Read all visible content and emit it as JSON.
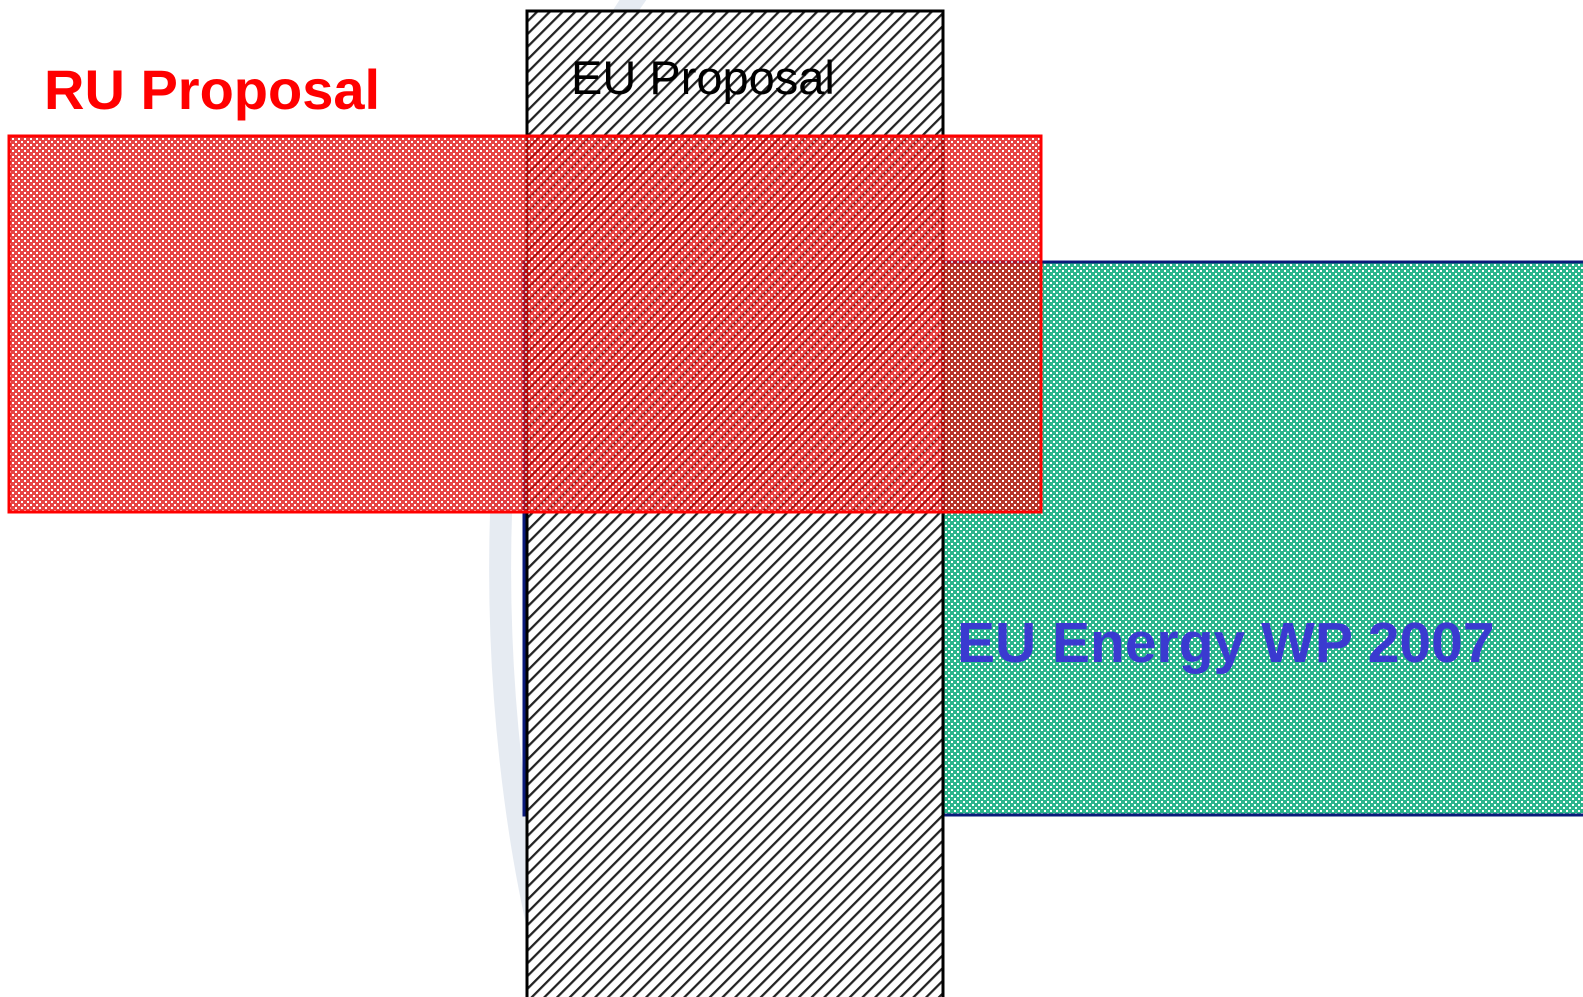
{
  "diagram": {
    "eu_energy_wp": {
      "label": "EU Energy WP 2007",
      "fill_color": "#2bb58c",
      "border_color": "#0a1a7a",
      "label_color": "#3a3ad0"
    },
    "eu_proposal": {
      "label": "EU Proposal",
      "hatch_color": "#222222",
      "border_color": "#000000",
      "label_color": "#000000"
    },
    "ru_proposal": {
      "label": "RU Proposal",
      "fill_color": "#e01010",
      "border_color": "#ff0000",
      "label_color": "#ff0000"
    },
    "background_arc_color": "#dce3ec"
  }
}
